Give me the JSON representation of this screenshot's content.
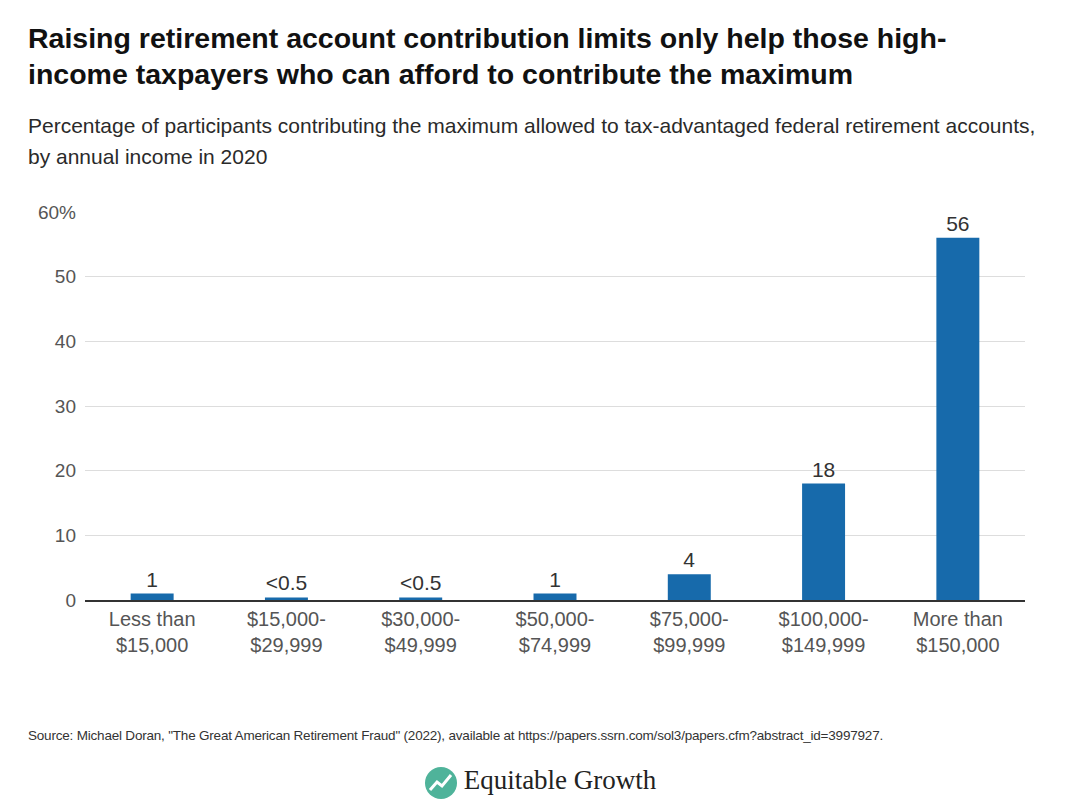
{
  "chart_data": {
    "type": "bar",
    "title": "Raising retirement account contribution limits only help those high-income taxpayers who can afford to contribute the maximum",
    "subtitle": "Percentage of participants contributing the maximum allowed to tax-advantaged federal retirement accounts, by annual income in 2020",
    "source": "Source: Michael Doran, \"The Great American Retirement Fraud\" (2022), available at https://papers.ssrn.com/sol3/papers.cfm?abstract_id=3997927.",
    "brand": "Equitable Growth",
    "categories": [
      "Less than $15,000",
      "$15,000-$29,999",
      "$30,000-$49,999",
      "$50,000-$74,999",
      "$75,000-$99,999",
      "$100,000-$149,999",
      "More than $150,000"
    ],
    "values": [
      1,
      0.4,
      0.4,
      1,
      4,
      18,
      56
    ],
    "value_labels": [
      "1",
      "<0.5",
      "<0.5",
      "1",
      "4",
      "18",
      "56"
    ],
    "data_labels": true,
    "color": "#176aab",
    "ylim": [
      0,
      60
    ],
    "yticks": [
      0,
      10,
      20,
      30,
      40,
      50,
      {
        "value": 60,
        "label": "60%"
      }
    ],
    "grid": true
  }
}
